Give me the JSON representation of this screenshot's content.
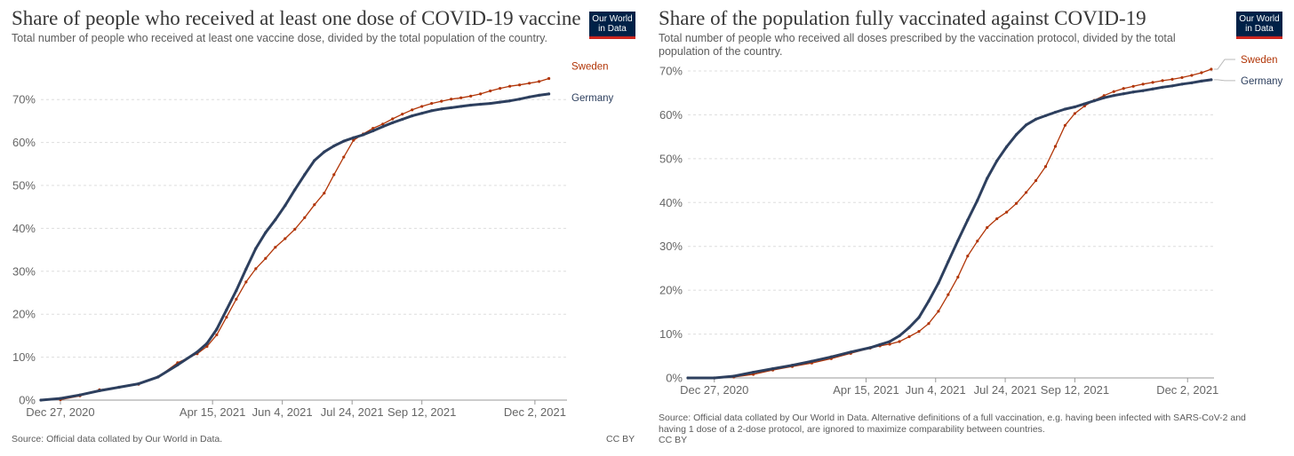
{
  "colors": {
    "sweden": "#b13507",
    "germany": "#2d3f5e",
    "grid": "#dddddd",
    "logo_bg": "#002147",
    "logo_accent": "#ce261e"
  },
  "logo": {
    "line1": "Our World",
    "line2": "in Data"
  },
  "chart_data": [
    {
      "type": "line",
      "title": "Share of people who received at least one dose of COVID-19 vaccine",
      "subtitle": "Total number of people who received at least one vaccine dose, divided by the total population of the country.",
      "source": "Source: Official data collated by Our World in Data.",
      "license": "CC BY",
      "x_range": [
        "2020-12-13",
        "2021-12-25"
      ],
      "ylim": [
        0,
        75
      ],
      "y_ticks": [
        0,
        10,
        20,
        30,
        40,
        50,
        60,
        70
      ],
      "y_tick_labels": [
        "0%",
        "10%",
        "20%",
        "30%",
        "40%",
        "50%",
        "60%",
        "70%"
      ],
      "x_ticks": [
        "2020-12-27",
        "2021-04-15",
        "2021-06-04",
        "2021-07-24",
        "2021-09-12",
        "2021-12-02"
      ],
      "x_tick_labels": [
        "Dec 27, 2020",
        "Apr 15, 2021",
        "Jun 4, 2021",
        "Jul 24, 2021",
        "Sep 12, 2021",
        "Dec 2, 2021"
      ],
      "grid": true,
      "legend": "right",
      "series": [
        {
          "name": "Sweden",
          "x": [
            "2020-12-27",
            "2021-01-10",
            "2021-01-24",
            "2021-02-07",
            "2021-02-21",
            "2021-03-07",
            "2021-03-21",
            "2021-04-04",
            "2021-04-11",
            "2021-04-18",
            "2021-04-25",
            "2021-05-02",
            "2021-05-09",
            "2021-05-16",
            "2021-05-23",
            "2021-05-30",
            "2021-06-06",
            "2021-06-13",
            "2021-06-20",
            "2021-06-27",
            "2021-07-04",
            "2021-07-11",
            "2021-07-18",
            "2021-07-25",
            "2021-08-01",
            "2021-08-08",
            "2021-08-15",
            "2021-08-22",
            "2021-08-29",
            "2021-09-05",
            "2021-09-12",
            "2021-09-19",
            "2021-09-26",
            "2021-10-03",
            "2021-10-10",
            "2021-10-17",
            "2021-10-24",
            "2021-10-31",
            "2021-11-07",
            "2021-11-14",
            "2021-11-21",
            "2021-11-28",
            "2021-12-05",
            "2021-12-12"
          ],
          "y": [
            0.1,
            1.0,
            2.4,
            3.0,
            3.7,
            5.4,
            8.7,
            10.8,
            12.5,
            15.2,
            19.3,
            23.5,
            27.5,
            30.6,
            33.0,
            35.6,
            37.6,
            39.8,
            42.5,
            45.5,
            48.2,
            52.5,
            56.6,
            60.5,
            62.0,
            63.3,
            64.3,
            65.5,
            66.6,
            67.6,
            68.4,
            69.1,
            69.6,
            70.1,
            70.4,
            70.8,
            71.3,
            72.0,
            72.6,
            73.1,
            73.4,
            73.8,
            74.2,
            74.9
          ]
        },
        {
          "name": "Germany",
          "x": [
            "2020-12-13",
            "2020-12-27",
            "2021-01-10",
            "2021-01-24",
            "2021-02-07",
            "2021-02-21",
            "2021-03-07",
            "2021-03-21",
            "2021-04-04",
            "2021-04-11",
            "2021-04-18",
            "2021-04-25",
            "2021-05-02",
            "2021-05-09",
            "2021-05-16",
            "2021-05-23",
            "2021-05-30",
            "2021-06-06",
            "2021-06-13",
            "2021-06-20",
            "2021-06-27",
            "2021-07-04",
            "2021-07-11",
            "2021-07-18",
            "2021-07-25",
            "2021-08-01",
            "2021-08-08",
            "2021-08-15",
            "2021-08-22",
            "2021-08-29",
            "2021-09-05",
            "2021-09-12",
            "2021-09-19",
            "2021-09-26",
            "2021-10-03",
            "2021-10-10",
            "2021-10-17",
            "2021-10-24",
            "2021-10-31",
            "2021-11-07",
            "2021-11-14",
            "2021-11-21",
            "2021-11-28",
            "2021-12-05",
            "2021-12-12"
          ],
          "y": [
            0,
            0.4,
            1.2,
            2.2,
            3.0,
            3.8,
            5.4,
            8.2,
            11.2,
            13.2,
            16.5,
            21.0,
            25.5,
            30.5,
            35.3,
            39.0,
            42.0,
            45.3,
            49.0,
            52.5,
            55.8,
            57.8,
            59.2,
            60.3,
            61.1,
            61.8,
            62.7,
            63.7,
            64.6,
            65.4,
            66.2,
            66.8,
            67.4,
            67.8,
            68.1,
            68.4,
            68.7,
            68.9,
            69.1,
            69.4,
            69.7,
            70.1,
            70.6,
            71.0,
            71.3
          ]
        }
      ]
    },
    {
      "type": "line",
      "title": "Share of the population fully vaccinated against COVID-19",
      "subtitle": "Total number of people who received all doses prescribed by the vaccination protocol, divided by the total population of the country.",
      "source": "Source: Official data collated by Our World in Data. Alternative definitions of a full vaccination, e.g. having been infected with SARS-CoV-2 and having 1 dose of a 2-dose protocol, are ignored to maximize comparability between countries.",
      "license": "CC BY",
      "x_range": [
        "2020-12-08",
        "2021-12-21"
      ],
      "ylim": [
        0,
        70
      ],
      "y_ticks": [
        0,
        10,
        20,
        30,
        40,
        50,
        60,
        70
      ],
      "y_tick_labels": [
        "0%",
        "10%",
        "20%",
        "30%",
        "40%",
        "50%",
        "60%",
        "70%"
      ],
      "x_ticks": [
        "2020-12-27",
        "2021-04-15",
        "2021-06-04",
        "2021-07-24",
        "2021-09-12",
        "2021-12-02"
      ],
      "x_tick_labels": [
        "Dec 27, 2020",
        "Apr 15, 2021",
        "Jun 4, 2021",
        "Jul 24, 2021",
        "Sep 12, 2021",
        "Dec 2, 2021"
      ],
      "grid": true,
      "legend": "right",
      "series": [
        {
          "name": "Sweden",
          "x": [
            "2020-12-27",
            "2021-01-10",
            "2021-01-24",
            "2021-02-07",
            "2021-02-21",
            "2021-03-07",
            "2021-03-21",
            "2021-04-04",
            "2021-04-18",
            "2021-04-25",
            "2021-05-02",
            "2021-05-09",
            "2021-05-16",
            "2021-05-23",
            "2021-05-30",
            "2021-06-06",
            "2021-06-13",
            "2021-06-20",
            "2021-06-27",
            "2021-07-04",
            "2021-07-11",
            "2021-07-18",
            "2021-07-25",
            "2021-08-01",
            "2021-08-08",
            "2021-08-15",
            "2021-08-22",
            "2021-08-29",
            "2021-09-05",
            "2021-09-12",
            "2021-09-19",
            "2021-09-26",
            "2021-10-03",
            "2021-10-10",
            "2021-10-17",
            "2021-10-24",
            "2021-10-31",
            "2021-11-07",
            "2021-11-14",
            "2021-11-21",
            "2021-11-28",
            "2021-12-05",
            "2021-12-12",
            "2021-12-19"
          ],
          "y": [
            0,
            0.2,
            0.8,
            1.8,
            2.6,
            3.4,
            4.4,
            5.6,
            6.8,
            7.3,
            7.7,
            8.3,
            9.4,
            10.6,
            12.4,
            15.2,
            19.0,
            23.0,
            27.8,
            31.2,
            34.3,
            36.3,
            37.8,
            39.8,
            42.3,
            45.0,
            48.2,
            52.8,
            57.6,
            60.3,
            62.0,
            63.3,
            64.4,
            65.3,
            66.0,
            66.5,
            67.0,
            67.4,
            67.8,
            68.1,
            68.5,
            69.0,
            69.6,
            70.4
          ]
        },
        {
          "name": "Germany",
          "x": [
            "2020-12-08",
            "2020-12-27",
            "2021-01-10",
            "2021-01-24",
            "2021-02-07",
            "2021-02-21",
            "2021-03-07",
            "2021-03-21",
            "2021-04-04",
            "2021-04-18",
            "2021-04-25",
            "2021-05-02",
            "2021-05-09",
            "2021-05-16",
            "2021-05-23",
            "2021-05-30",
            "2021-06-06",
            "2021-06-13",
            "2021-06-20",
            "2021-06-27",
            "2021-07-04",
            "2021-07-11",
            "2021-07-18",
            "2021-07-25",
            "2021-08-01",
            "2021-08-08",
            "2021-08-15",
            "2021-08-22",
            "2021-08-29",
            "2021-09-05",
            "2021-09-12",
            "2021-09-19",
            "2021-09-26",
            "2021-10-03",
            "2021-10-10",
            "2021-10-17",
            "2021-10-24",
            "2021-10-31",
            "2021-11-07",
            "2021-11-14",
            "2021-11-21",
            "2021-11-28",
            "2021-12-05",
            "2021-12-12",
            "2021-12-19"
          ],
          "y": [
            0,
            0,
            0.4,
            1.3,
            2.1,
            2.9,
            3.8,
            4.8,
            5.9,
            6.9,
            7.6,
            8.3,
            9.6,
            11.5,
            13.8,
            17.5,
            21.6,
            26.5,
            31.3,
            36.0,
            40.5,
            45.5,
            49.5,
            52.7,
            55.5,
            57.7,
            59.0,
            59.8,
            60.6,
            61.3,
            61.8,
            62.5,
            63.2,
            63.9,
            64.4,
            64.8,
            65.2,
            65.5,
            65.9,
            66.3,
            66.6,
            67.0,
            67.3,
            67.7,
            68.0
          ]
        }
      ]
    }
  ]
}
